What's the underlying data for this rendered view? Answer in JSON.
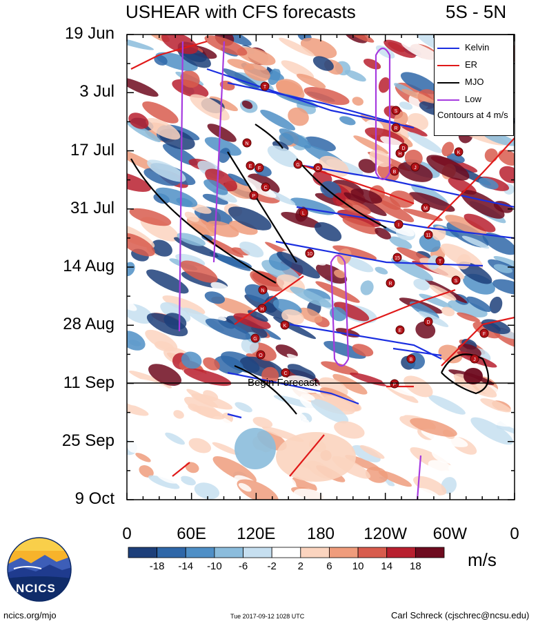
{
  "chart_data": {
    "type": "heatmap",
    "title": "USHEAR with CFS forecasts",
    "region": "5S - 5N",
    "y_tick_labels": [
      "19 Jun",
      "3 Jul",
      "17 Jul",
      "31 Jul",
      "14 Aug",
      "28 Aug",
      "11 Sep",
      "25 Sep",
      "9 Oct"
    ],
    "x_tick_labels": [
      "0",
      "60E",
      "120E",
      "180",
      "120W",
      "60W",
      "0"
    ],
    "x_range_deg_east": [
      0,
      360
    ],
    "forecast_label": "Begin Forecast",
    "forecast_start": "11 Sep",
    "colorbar": {
      "units": "m/s",
      "tick_labels": [
        "-18",
        "-14",
        "-10",
        "-6",
        "-2",
        "2",
        "6",
        "10",
        "14",
        "18"
      ],
      "colors": [
        "#1d3f7a",
        "#2f67a8",
        "#4f8fc6",
        "#8bbcdc",
        "#c6dff0",
        "#ffffff",
        "#fbd4bf",
        "#ef9c7c",
        "#d85c4d",
        "#b8202f",
        "#6e0b1f"
      ]
    },
    "legend": [
      {
        "name": "Kelvin",
        "color": "#1a2ee0"
      },
      {
        "name": "ER",
        "color": "#e01919"
      },
      {
        "name": "MJO",
        "color": "#000000"
      },
      {
        "name": "Low",
        "color": "#a63adf"
      }
    ],
    "contour_note": "Contours at 4 m/s",
    "storm_markers": [
      "T",
      "S",
      "R",
      "N",
      "H",
      "D",
      "K",
      "E",
      "F",
      "G",
      "O",
      "B",
      "J",
      "C",
      "P",
      "M",
      "L",
      "I",
      "11",
      "10",
      "15"
    ]
  },
  "logo": {
    "text": "NCICS"
  },
  "footer": {
    "left": "ncics.org/mjo",
    "center": "Tue 2017-09-12 1028 UTC",
    "right": "Carl Schreck (cjschrec@ncsu.edu)"
  }
}
